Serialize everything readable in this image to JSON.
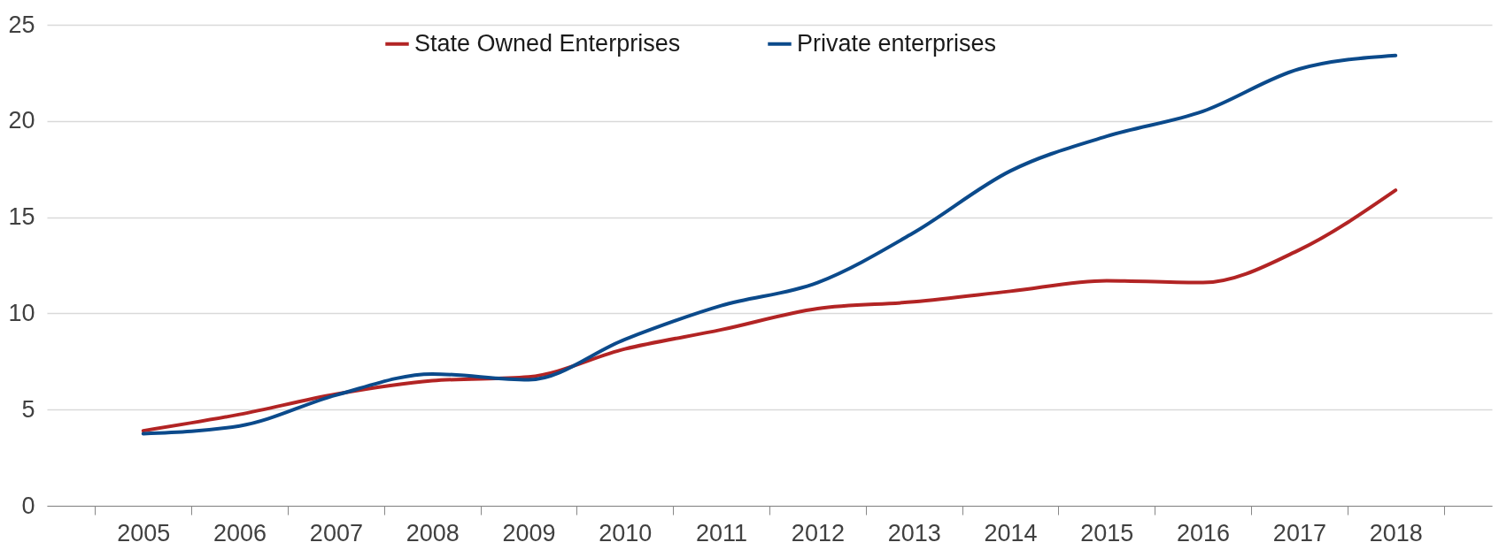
{
  "chart_data": {
    "type": "line",
    "categories": [
      "2005",
      "2006",
      "2007",
      "2008",
      "2009",
      "2010",
      "2011",
      "2012",
      "2013",
      "2014",
      "2015",
      "2016",
      "2017",
      "2018"
    ],
    "series": [
      {
        "name": "State Owned Enterprises",
        "color": "#b22424",
        "values": [
          3.9,
          4.75,
          5.8,
          6.5,
          6.7,
          8.15,
          9.15,
          10.25,
          10.6,
          11.15,
          11.7,
          11.6,
          13.3,
          16.4
        ]
      },
      {
        "name": "Private enterprises",
        "color": "#0b4a8b",
        "values": [
          3.75,
          4.15,
          5.75,
          6.85,
          6.55,
          8.65,
          10.4,
          11.6,
          14.2,
          17.4,
          19.2,
          20.5,
          22.7,
          23.4
        ]
      }
    ],
    "ylim": [
      0,
      25
    ],
    "yticks": [
      0,
      5,
      10,
      15,
      20,
      25
    ],
    "grid": "y",
    "legend": "top",
    "marker": "none",
    "line_style": "solid"
  }
}
